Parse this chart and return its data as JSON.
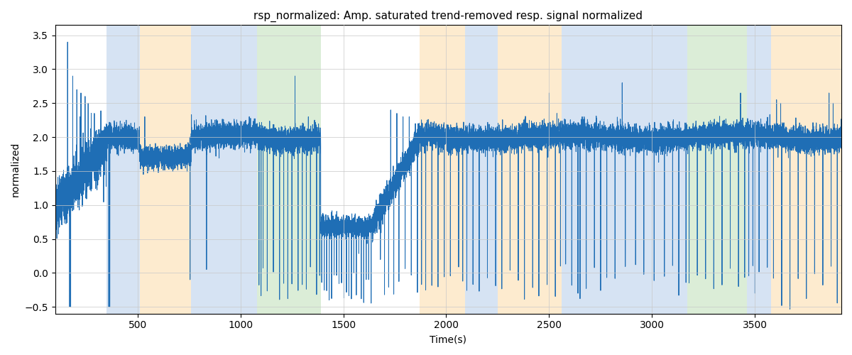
{
  "title": "rsp_normalized: Amp. saturated trend-removed resp. signal normalized",
  "xlabel": "Time(s)",
  "ylabel": "normalized",
  "ylim": [
    -0.6,
    3.65
  ],
  "xlim": [
    100,
    3920
  ],
  "line_color": "#1f6eb5",
  "line_width": 0.7,
  "grid_color": "#c8c8c8",
  "bands": [
    {
      "xmin": 350,
      "xmax": 510,
      "color": "#aec8e8",
      "alpha": 0.5
    },
    {
      "xmin": 510,
      "xmax": 760,
      "color": "#fdd8a0",
      "alpha": 0.5
    },
    {
      "xmin": 760,
      "xmax": 1080,
      "color": "#aec8e8",
      "alpha": 0.5
    },
    {
      "xmin": 1080,
      "xmax": 1390,
      "color": "#b8dcb0",
      "alpha": 0.5
    },
    {
      "xmin": 1870,
      "xmax": 2090,
      "color": "#fdd8a0",
      "alpha": 0.5
    },
    {
      "xmin": 2090,
      "xmax": 2250,
      "color": "#aec8e8",
      "alpha": 0.5
    },
    {
      "xmin": 2250,
      "xmax": 2560,
      "color": "#fdd8a0",
      "alpha": 0.5
    },
    {
      "xmin": 2560,
      "xmax": 2760,
      "color": "#aec8e8",
      "alpha": 0.5
    },
    {
      "xmin": 2760,
      "xmax": 3170,
      "color": "#aec8e8",
      "alpha": 0.5
    },
    {
      "xmin": 3170,
      "xmax": 3460,
      "color": "#b8dcb0",
      "alpha": 0.5
    },
    {
      "xmin": 3460,
      "xmax": 3580,
      "color": "#aec8e8",
      "alpha": 0.5
    },
    {
      "xmin": 3580,
      "xmax": 3920,
      "color": "#fdd8a0",
      "alpha": 0.5
    }
  ],
  "xticks": [
    500,
    1000,
    1500,
    2000,
    2500,
    3000,
    3500
  ],
  "yticks": [
    -0.5,
    0.0,
    0.5,
    1.0,
    1.5,
    2.0,
    2.5,
    3.0,
    3.5
  ]
}
